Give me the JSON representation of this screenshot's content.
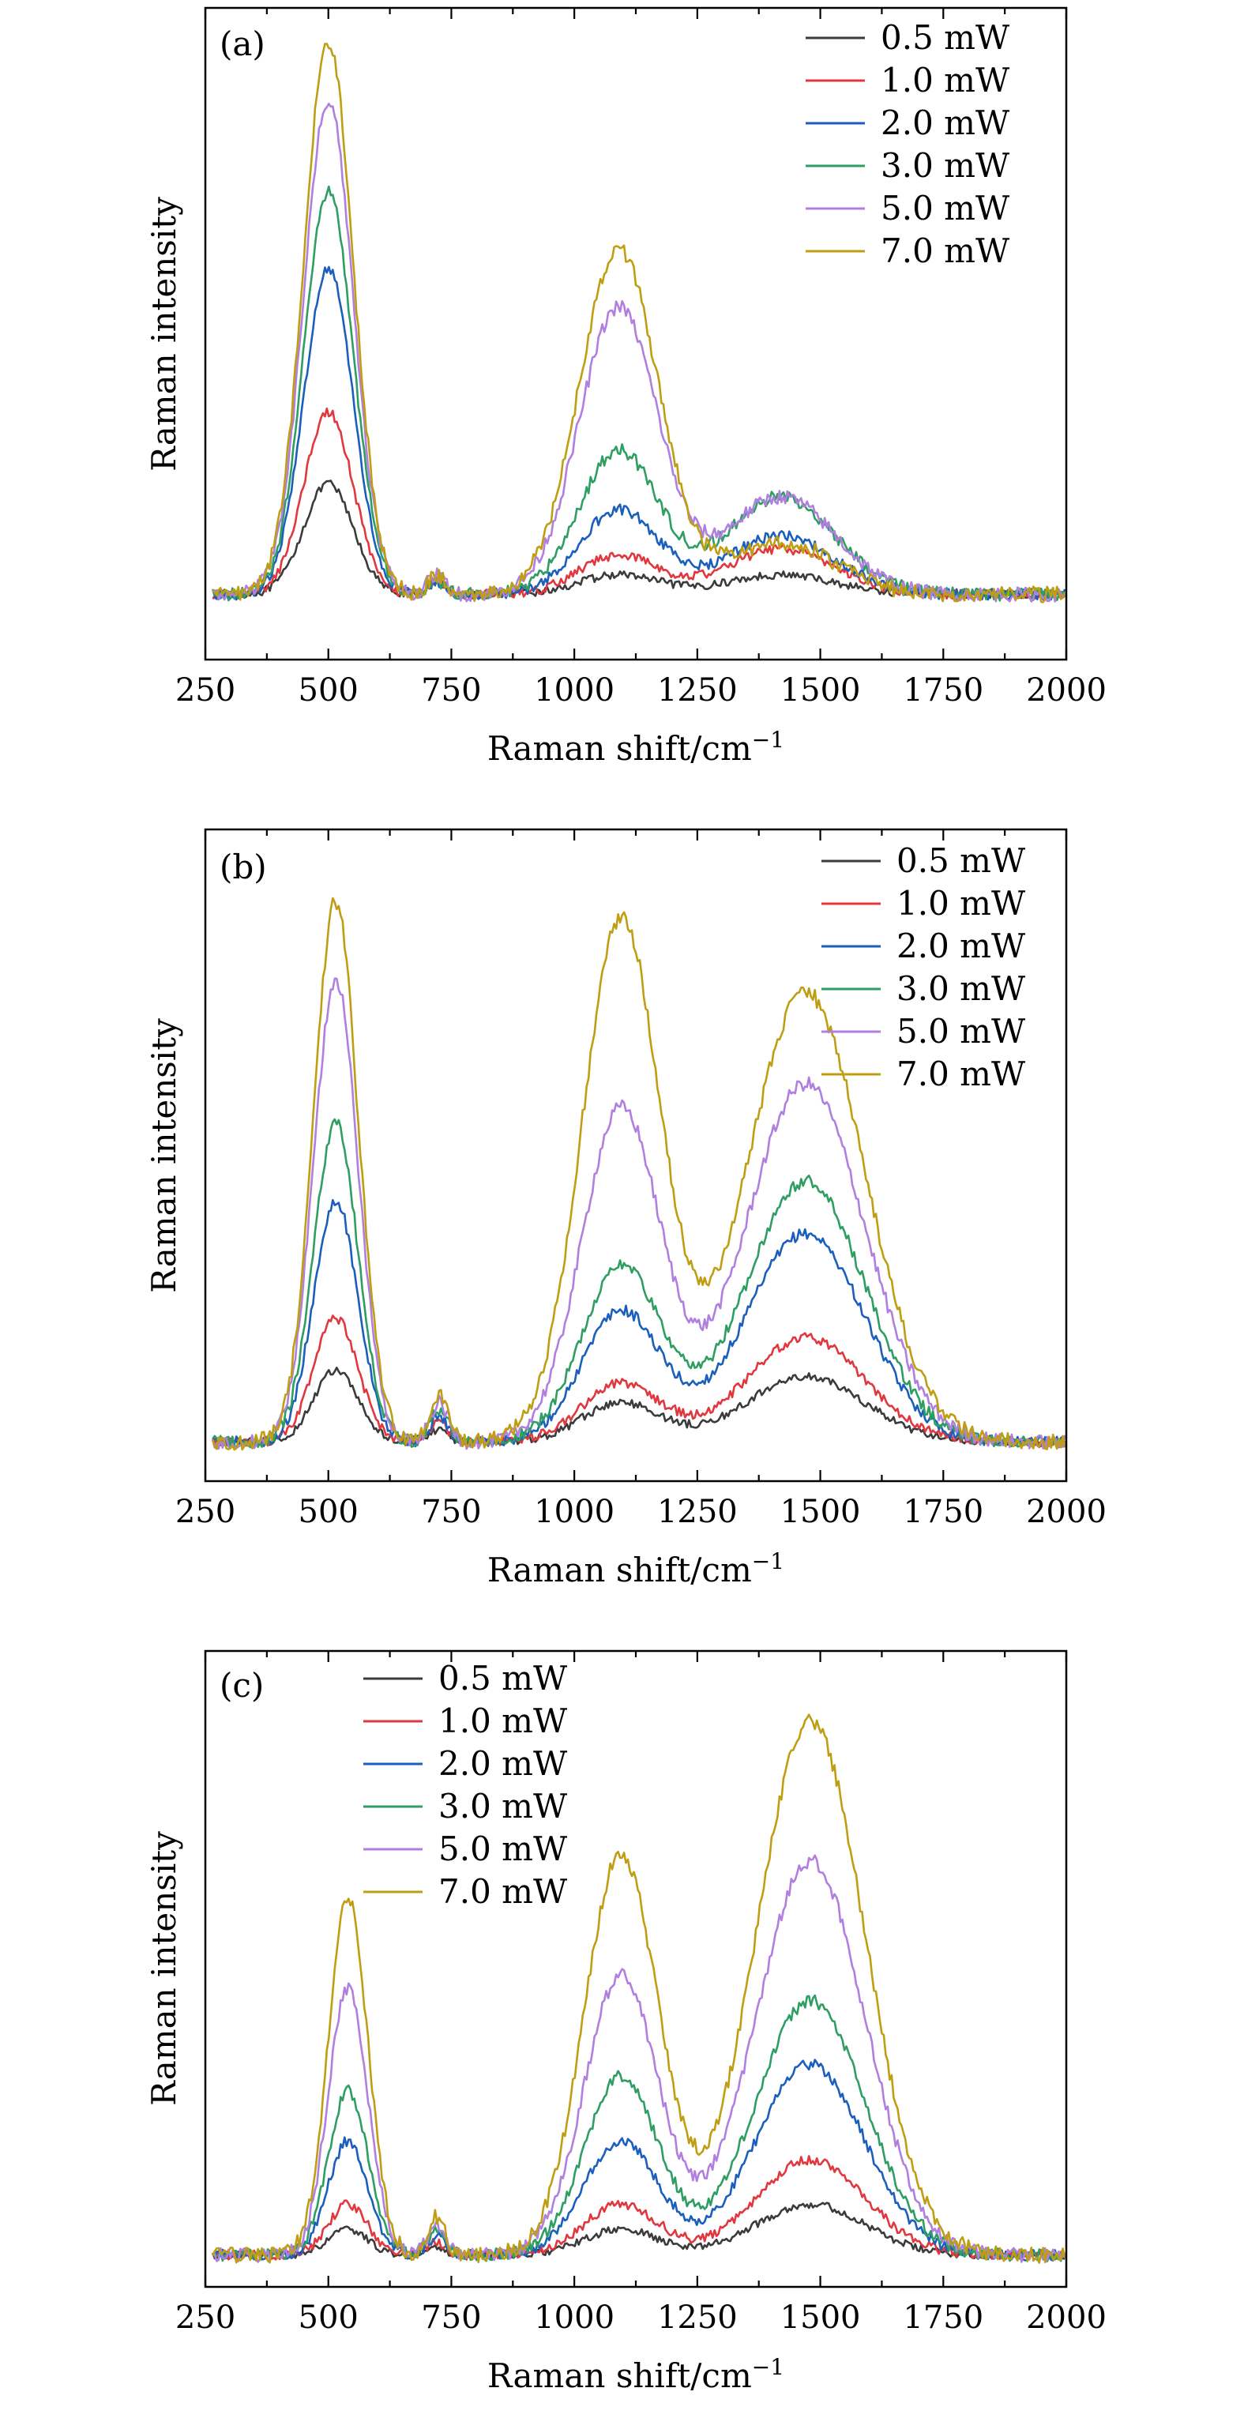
{
  "chart_data": [
    {
      "type": "line",
      "panel_label": "(a)",
      "xlabel": "Raman shift/cm",
      "xlabel_sup": "−1",
      "ylabel": "Raman intensity",
      "xlim": [
        250,
        2000
      ],
      "ylim": [
        0,
        100
      ],
      "xticks": [
        250,
        500,
        750,
        1000,
        1250,
        1500,
        1750,
        2000
      ],
      "xtick_labels": [
        "250",
        "500",
        "750",
        "1000",
        "1250",
        "1500",
        "1750",
        "2000"
      ],
      "legend_position": "top-right",
      "grid": false,
      "peaks": [
        {
          "center": 500,
          "width": 50
        },
        {
          "center": 1090,
          "width": 80
        },
        {
          "center": 1420,
          "width": 110
        },
        {
          "center": 720,
          "width": 18
        }
      ],
      "baseline": 10,
      "series": [
        {
          "name": "0.5 mW",
          "color": "#3b3b3b",
          "peak_heights": [
            17,
            3,
            3,
            2
          ]
        },
        {
          "name": "1.0 mW",
          "color": "#e0383e",
          "peak_heights": [
            28,
            6,
            7,
            2
          ]
        },
        {
          "name": "2.0 mW",
          "color": "#1b5fbd",
          "peak_heights": [
            50,
            13,
            9,
            2
          ]
        },
        {
          "name": "3.0 mW",
          "color": "#2e9e63",
          "peak_heights": [
            62,
            22,
            15,
            2
          ]
        },
        {
          "name": "5.0 mW",
          "color": "#b07fdf",
          "peak_heights": [
            76,
            44,
            15,
            3
          ]
        },
        {
          "name": "7.0 mW",
          "color": "#c09e14",
          "peak_heights": [
            85,
            53,
            8,
            3
          ]
        }
      ]
    },
    {
      "type": "line",
      "panel_label": "(b)",
      "xlabel": "Raman shift/cm",
      "xlabel_sup": "−1",
      "ylabel": "Raman intensity",
      "xlim": [
        250,
        2000
      ],
      "ylim": [
        0,
        100
      ],
      "xticks": [
        250,
        500,
        750,
        1000,
        1250,
        1500,
        1750,
        2000
      ],
      "xtick_labels": [
        "250",
        "500",
        "750",
        "1000",
        "1250",
        "1500",
        "1750",
        "2000"
      ],
      "legend_position": "top-right",
      "grid": false,
      "peaks": [
        {
          "center": 515,
          "width": 45
        },
        {
          "center": 1095,
          "width": 80
        },
        {
          "center": 1470,
          "width": 120
        },
        {
          "center": 725,
          "width": 18
        }
      ],
      "baseline": 6,
      "series": [
        {
          "name": "0.5 mW",
          "color": "#3b3b3b",
          "peak_heights": [
            11,
            6,
            10,
            2
          ]
        },
        {
          "name": "1.0 mW",
          "color": "#e0383e",
          "peak_heights": [
            19,
            9,
            16,
            3
          ]
        },
        {
          "name": "2.0 mW",
          "color": "#1b5fbd",
          "peak_heights": [
            37,
            20,
            32,
            4
          ]
        },
        {
          "name": "3.0 mW",
          "color": "#2e9e63",
          "peak_heights": [
            49,
            27,
            40,
            5
          ]
        },
        {
          "name": "5.0 mW",
          "color": "#b07fdf",
          "peak_heights": [
            71,
            51,
            55,
            6
          ]
        },
        {
          "name": "7.0 mW",
          "color": "#c09e14",
          "peak_heights": [
            83,
            80,
            69,
            7
          ]
        }
      ]
    },
    {
      "type": "line",
      "panel_label": "(c)",
      "xlabel": "Raman shift/cm",
      "xlabel_sup": "−1",
      "ylabel": "Raman intensity",
      "xlim": [
        250,
        2000
      ],
      "ylim": [
        0,
        100
      ],
      "xticks": [
        250,
        500,
        750,
        1000,
        1250,
        1500,
        1750,
        2000
      ],
      "xtick_labels": [
        "250",
        "500",
        "750",
        "1000",
        "1250",
        "1500",
        "1750",
        "2000"
      ],
      "legend_position": "top-left",
      "grid": false,
      "peaks": [
        {
          "center": 540,
          "width": 40
        },
        {
          "center": 1095,
          "width": 75
        },
        {
          "center": 1480,
          "width": 110
        },
        {
          "center": 720,
          "width": 18
        }
      ],
      "baseline": 5,
      "series": [
        {
          "name": "0.5 mW",
          "color": "#3b3b3b",
          "peak_heights": [
            4,
            4,
            8,
            1
          ]
        },
        {
          "name": "1.0 mW",
          "color": "#e0383e",
          "peak_heights": [
            8,
            8,
            15,
            2
          ]
        },
        {
          "name": "2.0 mW",
          "color": "#1b5fbd",
          "peak_heights": [
            18,
            18,
            30,
            3
          ]
        },
        {
          "name": "3.0 mW",
          "color": "#2e9e63",
          "peak_heights": [
            26,
            28,
            40,
            4
          ]
        },
        {
          "name": "5.0 mW",
          "color": "#b07fdf",
          "peak_heights": [
            42,
            44,
            62,
            5
          ]
        },
        {
          "name": "7.0 mW",
          "color": "#c09e14",
          "peak_heights": [
            56,
            63,
            84,
            6
          ]
        }
      ]
    }
  ]
}
